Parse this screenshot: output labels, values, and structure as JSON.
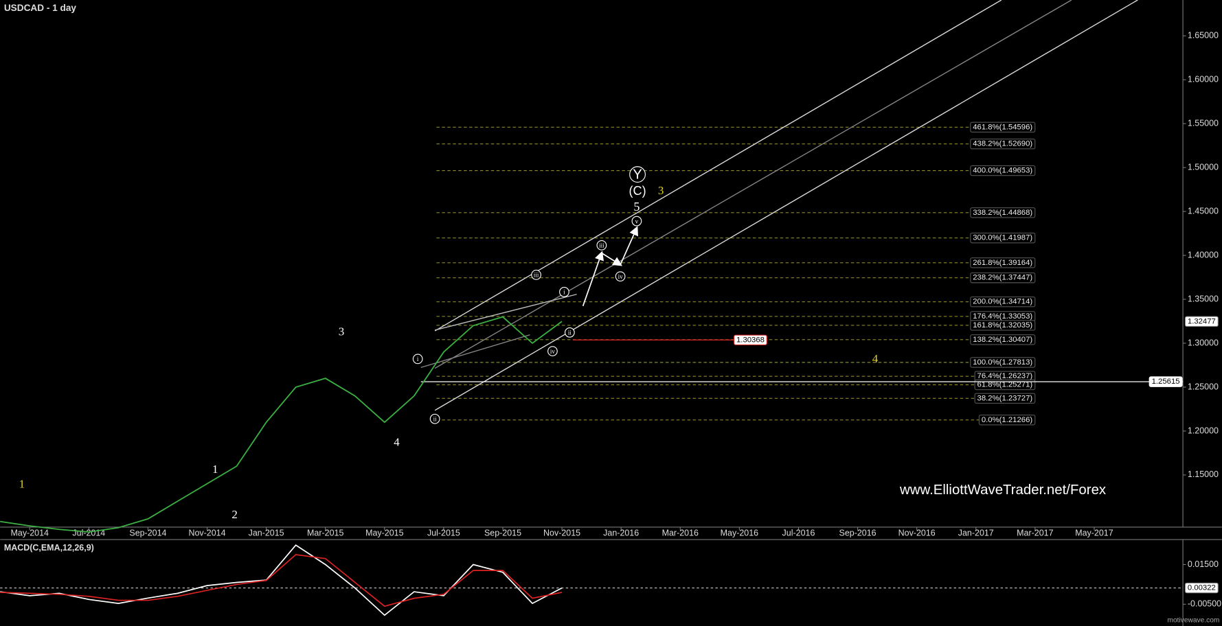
{
  "chart_data": {
    "type": "line",
    "title": "USDCAD - 1 day",
    "x": [
      "Apr-2014",
      "May-2014",
      "Jun-2014",
      "Jul-2014",
      "Aug-2014",
      "Sep-2014",
      "Oct-2014",
      "Nov-2014",
      "Dec-2014",
      "Jan-2015",
      "Feb-2015",
      "Mar-2015",
      "Apr-2015",
      "May-2015",
      "Jun-2015",
      "Jul-2015",
      "Aug-2015",
      "Sep-2015",
      "Oct-2015",
      "Nov-2015"
    ],
    "series": [
      {
        "color": "#3cb043",
        "values": [
          1.097,
          1.092,
          1.088,
          1.085,
          1.09,
          1.1,
          1.12,
          1.14,
          1.16,
          1.21,
          1.25,
          1.26,
          1.24,
          1.21,
          1.24,
          1.29,
          1.32,
          1.33,
          1.3,
          1.3248
        ]
      }
    ],
    "xlim": [
      "Apr-2014",
      "Aug-2017"
    ],
    "xticks": [
      "May-2014",
      "Jul-2014",
      "Sep-2014",
      "Nov-2014",
      "Jan-2015",
      "Mar-2015",
      "May-2015",
      "Jul-2015",
      "Sep-2015",
      "Nov-2015",
      "Jan-2016",
      "Mar-2016",
      "May-2016",
      "Jul-2016",
      "Sep-2016",
      "Nov-2016",
      "Jan-2017",
      "Mar-2017",
      "May-2017"
    ],
    "ylim": [
      1.0906,
      1.6908
    ],
    "yticks": [
      {
        "value": 1.15,
        "label": "1.15000"
      },
      {
        "value": 1.2,
        "label": "1.20000"
      },
      {
        "value": 1.25,
        "label": "1.25000"
      },
      {
        "value": 1.3,
        "label": "1.30000"
      },
      {
        "value": 1.35,
        "label": "1.35000"
      },
      {
        "value": 1.4,
        "label": "1.40000"
      },
      {
        "value": 1.45,
        "label": "1.45000"
      },
      {
        "value": 1.5,
        "label": "1.50000"
      },
      {
        "value": 1.55,
        "label": "1.55000"
      },
      {
        "value": 1.6,
        "label": "1.60000"
      },
      {
        "value": 1.65,
        "label": "1.65000"
      }
    ],
    "last_price": 1.32477,
    "levels": [
      {
        "value": 1.30368,
        "color": "#cc2222"
      },
      {
        "value": 1.25615,
        "color": "#ffffff"
      }
    ],
    "fib_color": "#8a8a2a",
    "fib_levels": [
      {
        "value": 1.54596,
        "label": "461.8%(1.54596)"
      },
      {
        "value": 1.5269,
        "label": "438.2%(1.52690)"
      },
      {
        "value": 1.49653,
        "label": "400.0%(1.49653)"
      },
      {
        "value": 1.44868,
        "label": "338.2%(1.44868)"
      },
      {
        "value": 1.41987,
        "label": "300.0%(1.41987)"
      },
      {
        "value": 1.39164,
        "label": "261.8%(1.39164)"
      },
      {
        "value": 1.37447,
        "label": "238.2%(1.37447)"
      },
      {
        "value": 1.34714,
        "label": "200.0%(1.34714)"
      },
      {
        "value": 1.33053,
        "label": "176.4%(1.33053)"
      },
      {
        "value": 1.32035,
        "label": "161.8%(1.32035)"
      },
      {
        "value": 1.30407,
        "label": "138.2%(1.30407)"
      },
      {
        "value": 1.27813,
        "label": "100.0%(1.27813)"
      },
      {
        "value": 1.26237,
        "label": "76.4%(1.26237)"
      },
      {
        "value": 1.25271,
        "label": "61.8%(1.25271)"
      },
      {
        "value": 1.23727,
        "label": "38.2%(1.23727)"
      },
      {
        "value": 1.21266,
        "label": "0.0%(1.21266)"
      }
    ],
    "wave_labels": [
      {
        "text": "1",
        "color": "#ffffff"
      },
      {
        "text": "2",
        "color": "#ffffff"
      },
      {
        "text": "3",
        "color": "#ffffff"
      },
      {
        "text": "4",
        "color": "#ffffff"
      },
      {
        "text": "1",
        "color": "#e6d21e"
      },
      {
        "text": "3",
        "color": "#e6d21e"
      },
      {
        "text": "4",
        "color": "#e6d21e"
      },
      {
        "text": "i",
        "color": "#ffffff",
        "circled": true
      },
      {
        "text": "ii",
        "color": "#ffffff",
        "circled": true
      },
      {
        "text": "iii",
        "color": "#ffffff",
        "circled": true
      },
      {
        "text": "iv",
        "color": "#ffffff",
        "circled": true
      },
      {
        "text": "i",
        "color": "#ffffff",
        "circled": true
      },
      {
        "text": "ii",
        "color": "#ffffff",
        "circled": true
      },
      {
        "text": "iii",
        "color": "#ffffff",
        "circled": true
      },
      {
        "text": "iv",
        "color": "#ffffff",
        "circled": true
      },
      {
        "text": "v",
        "color": "#ffffff",
        "circled": true
      },
      {
        "text": "5",
        "color": "#ffffff"
      },
      {
        "text": "(C)",
        "color": "#ffffff"
      },
      {
        "text": "Y",
        "color": "#ffffff",
        "circled": true
      }
    ],
    "watermark": "www.ElliottWaveTrader.net/Forex",
    "source": "motivewave.com",
    "macd": {
      "title": "MACD(C,EMA,12,26,9)",
      "series": [
        {
          "color": "#ffffff",
          "values": [
            0.0013,
            -0.0007,
            0.0005,
            -0.0026,
            -0.0046,
            -0.0019,
            0.0005,
            0.0044,
            0.006,
            0.0072,
            0.0248,
            0.015,
            0.0032,
            -0.0105,
            0.0013,
            -0.0007,
            0.015,
            0.0111,
            -0.0046,
            0.0032
          ]
        },
        {
          "color": "#dd2222",
          "values": [
            0.001,
            0.0005,
            0.0,
            -0.001,
            -0.003,
            -0.003,
            -0.001,
            0.002,
            0.005,
            0.007,
            0.02,
            0.018,
            0.006,
            -0.006,
            -0.002,
            0.0,
            0.012,
            0.012,
            -0.002,
            0.001
          ]
        }
      ],
      "ylim": [
        -0.0144,
        0.0272
      ],
      "yticks": [
        {
          "value": 0.015,
          "label": "0.01500"
        },
        {
          "value": -0.005,
          "label": "-0.00500"
        }
      ],
      "last": 0.00322
    }
  }
}
